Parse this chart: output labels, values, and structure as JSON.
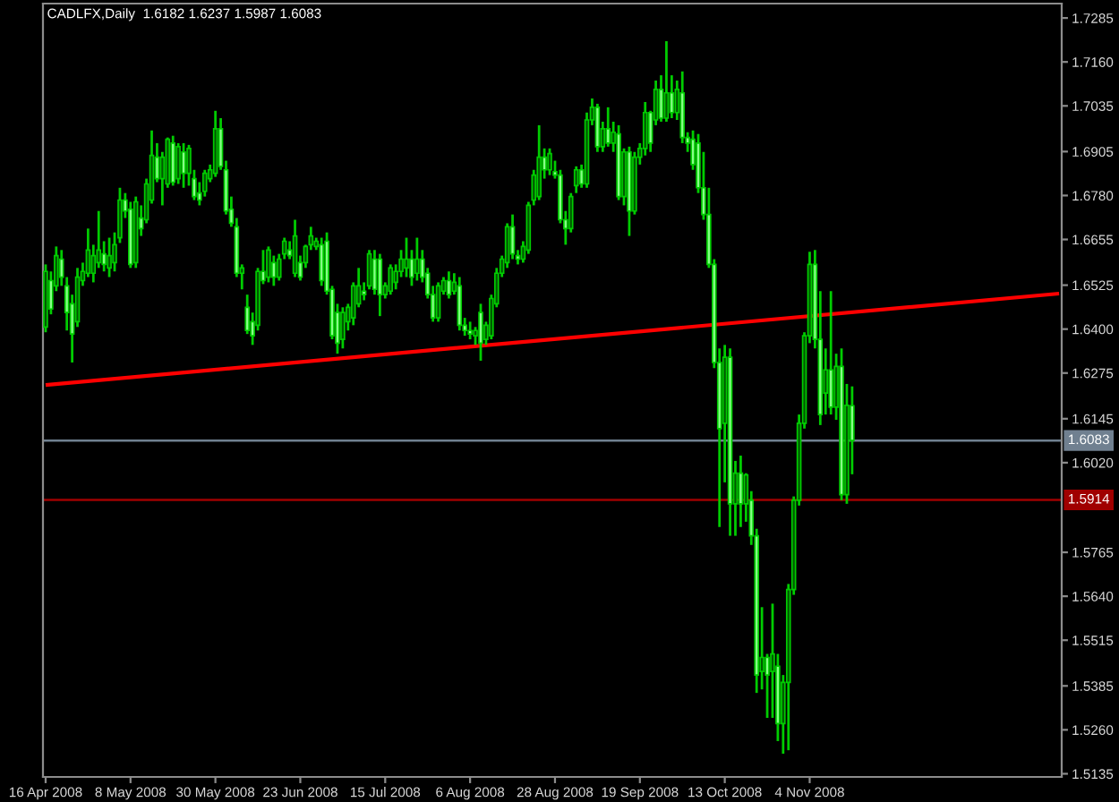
{
  "chart_data": {
    "type": "candlestick",
    "title": "CADLFX,Daily  1.6182 1.6237 1.5987 1.6083",
    "color": "#00cc00",
    "categories": [
      "16 Apr 2008",
      null,
      null,
      null,
      null,
      null,
      null,
      null,
      null,
      null,
      null,
      null,
      null,
      null,
      null,
      null,
      "8 May 2008",
      null,
      null,
      null,
      null,
      null,
      null,
      null,
      null,
      null,
      null,
      null,
      null,
      null,
      null,
      null,
      "30 May 2008",
      null,
      null,
      null,
      null,
      null,
      null,
      null,
      null,
      null,
      null,
      null,
      null,
      null,
      null,
      null,
      "23 Jun 2008",
      null,
      null,
      null,
      null,
      null,
      null,
      null,
      null,
      null,
      null,
      null,
      null,
      null,
      null,
      null,
      "15 Jul 2008",
      null,
      null,
      null,
      null,
      null,
      null,
      null,
      null,
      null,
      null,
      null,
      null,
      null,
      null,
      null,
      "6 Aug 2008",
      null,
      null,
      null,
      null,
      null,
      null,
      null,
      null,
      null,
      null,
      null,
      null,
      null,
      null,
      null,
      "28 Aug 2008",
      null,
      null,
      null,
      null,
      null,
      null,
      null,
      null,
      null,
      null,
      null,
      null,
      null,
      null,
      null,
      "19 Sep 2008",
      null,
      null,
      null,
      null,
      null,
      null,
      null,
      null,
      null,
      null,
      null,
      null,
      null,
      null,
      null,
      "13 Oct 2008",
      null,
      null,
      null,
      null,
      null,
      null,
      null,
      null,
      null,
      null,
      null,
      null,
      null,
      null,
      null,
      "4 Nov 2008",
      null,
      null,
      null,
      null,
      null,
      null,
      null,
      null,
      null,
      null,
      null,
      null,
      null,
      null,
      null,
      null,
      null,
      null,
      null,
      null,
      null,
      null,
      null,
      null,
      null,
      null,
      null,
      null,
      null,
      null,
      null,
      null,
      null,
      null,
      null,
      null,
      null,
      null,
      null,
      null,
      null,
      null,
      null,
      null,
      null,
      null,
      null
    ],
    "ohlc": [
      [
        1.6406,
        1.6584,
        1.6391,
        1.6564
      ],
      [
        1.6538,
        1.6564,
        1.6442,
        1.6457
      ],
      [
        1.6523,
        1.6635,
        1.6508,
        1.6609
      ],
      [
        1.6599,
        1.6625,
        1.6523,
        1.6548
      ],
      [
        1.6523,
        1.6548,
        1.6396,
        1.6447
      ],
      [
        1.6472,
        1.6498,
        1.6305,
        1.6386
      ],
      [
        1.6421,
        1.6574,
        1.6406,
        1.6548
      ],
      [
        1.6538,
        1.6589,
        1.6523,
        1.6564
      ],
      [
        1.6559,
        1.6686,
        1.6548,
        1.6625
      ],
      [
        1.6559,
        1.664,
        1.6533,
        1.6609
      ],
      [
        1.6589,
        1.6736,
        1.6574,
        1.6625
      ],
      [
        1.6614,
        1.665,
        1.6564,
        1.6584
      ],
      [
        1.6574,
        1.666,
        1.6548,
        1.6609
      ],
      [
        1.6589,
        1.6675,
        1.6564,
        1.664
      ],
      [
        1.666,
        1.6802,
        1.6645,
        1.6767
      ],
      [
        1.6767,
        1.6787,
        1.6716,
        1.6736
      ],
      [
        1.6741,
        1.6762,
        1.6574,
        1.6584
      ],
      [
        1.6589,
        1.6777,
        1.6574,
        1.6762
      ],
      [
        1.6716,
        1.6752,
        1.6665,
        1.6686
      ],
      [
        1.6711,
        1.6828,
        1.6701,
        1.6813
      ],
      [
        1.6767,
        1.6965,
        1.6757,
        1.6894
      ],
      [
        1.6889,
        1.6929,
        1.6818,
        1.6828
      ],
      [
        1.6828,
        1.6904,
        1.6752,
        1.6889
      ],
      [
        1.6813,
        1.6945,
        1.6802,
        1.694
      ],
      [
        1.6929,
        1.695,
        1.6808,
        1.6818
      ],
      [
        1.6828,
        1.6929,
        1.6813,
        1.6919
      ],
      [
        1.6904,
        1.6929,
        1.6802,
        1.6843
      ],
      [
        1.6843,
        1.6924,
        1.6808,
        1.6914
      ],
      [
        1.6828,
        1.6853,
        1.6767,
        1.6777
      ],
      [
        1.6787,
        1.6818,
        1.6752,
        1.6767
      ],
      [
        1.6792,
        1.6853,
        1.6777,
        1.6843
      ],
      [
        1.6828,
        1.6868,
        1.6818,
        1.6853
      ],
      [
        1.6843,
        1.7021,
        1.6833,
        1.697
      ],
      [
        1.697,
        1.7,
        1.6853,
        1.6863
      ],
      [
        1.6853,
        1.6879,
        1.6726,
        1.6736
      ],
      [
        1.6741,
        1.6777,
        1.6691,
        1.6701
      ],
      [
        1.6691,
        1.6716,
        1.6548,
        1.6559
      ],
      [
        1.6559,
        1.6584,
        1.6513,
        1.6574
      ],
      [
        1.6462,
        1.6498,
        1.6386,
        1.6396
      ],
      [
        1.6421,
        1.6447,
        1.6355,
        1.6381
      ],
      [
        1.6411,
        1.6574,
        1.6396,
        1.6564
      ],
      [
        1.6564,
        1.6625,
        1.6528,
        1.6538
      ],
      [
        1.6548,
        1.6635,
        1.6533,
        1.6625
      ],
      [
        1.6589,
        1.6609,
        1.6523,
        1.6548
      ],
      [
        1.6548,
        1.6614,
        1.6538,
        1.6599
      ],
      [
        1.6614,
        1.666,
        1.6599,
        1.665
      ],
      [
        1.6625,
        1.665,
        1.6599,
        1.6609
      ],
      [
        1.6559,
        1.6711,
        1.6548,
        1.6665
      ],
      [
        1.6589,
        1.6609,
        1.6538,
        1.6548
      ],
      [
        1.6589,
        1.664,
        1.6574,
        1.6635
      ],
      [
        1.664,
        1.6691,
        1.6625,
        1.6665
      ],
      [
        1.6635,
        1.666,
        1.6625,
        1.665
      ],
      [
        1.664,
        1.666,
        1.6523,
        1.6538
      ],
      [
        1.665,
        1.6675,
        1.6498,
        1.6508
      ],
      [
        1.6513,
        1.6523,
        1.6371,
        1.6381
      ],
      [
        1.6447,
        1.6472,
        1.633,
        1.636
      ],
      [
        1.6371,
        1.6462,
        1.6345,
        1.6447
      ],
      [
        1.6421,
        1.6472,
        1.6396,
        1.6462
      ],
      [
        1.6432,
        1.6533,
        1.6411,
        1.6523
      ],
      [
        1.6472,
        1.6574,
        1.6462,
        1.6523
      ],
      [
        1.6508,
        1.6533,
        1.6482,
        1.6498
      ],
      [
        1.6523,
        1.6625,
        1.6513,
        1.6614
      ],
      [
        1.6599,
        1.6625,
        1.6498,
        1.6513
      ],
      [
        1.6599,
        1.6614,
        1.6437,
        1.6498
      ],
      [
        1.6498,
        1.6533,
        1.6487,
        1.6523
      ],
      [
        1.6508,
        1.6584,
        1.6498,
        1.6574
      ],
      [
        1.6533,
        1.6584,
        1.6513,
        1.6564
      ],
      [
        1.6564,
        1.6625,
        1.6548,
        1.6599
      ],
      [
        1.6574,
        1.666,
        1.6548,
        1.6599
      ],
      [
        1.6599,
        1.6625,
        1.6523,
        1.6548
      ],
      [
        1.6559,
        1.666,
        1.6538,
        1.6599
      ],
      [
        1.6599,
        1.6625,
        1.6533,
        1.6548
      ],
      [
        1.6559,
        1.6574,
        1.6487,
        1.6498
      ],
      [
        1.6498,
        1.6523,
        1.6421,
        1.6432
      ],
      [
        1.6432,
        1.6533,
        1.6421,
        1.6523
      ],
      [
        1.6508,
        1.6548,
        1.6498,
        1.6538
      ],
      [
        1.6538,
        1.6564,
        1.6487,
        1.6498
      ],
      [
        1.6508,
        1.6559,
        1.6498,
        1.6533
      ],
      [
        1.6523,
        1.6548,
        1.6396,
        1.6411
      ],
      [
        1.6411,
        1.6432,
        1.6381,
        1.6396
      ],
      [
        1.6396,
        1.6421,
        1.6371,
        1.6386
      ],
      [
        1.6381,
        1.6406,
        1.6355,
        1.6396
      ],
      [
        1.6447,
        1.6472,
        1.631,
        1.636
      ],
      [
        1.6371,
        1.6421,
        1.6355,
        1.6411
      ],
      [
        1.6381,
        1.6498,
        1.6371,
        1.6487
      ],
      [
        1.6472,
        1.6574,
        1.6462,
        1.6559
      ],
      [
        1.6559,
        1.6609,
        1.6548,
        1.6599
      ],
      [
        1.6589,
        1.6701,
        1.6574,
        1.6691
      ],
      [
        1.6691,
        1.6726,
        1.6599,
        1.6614
      ],
      [
        1.6609,
        1.6625,
        1.6584,
        1.6599
      ],
      [
        1.6599,
        1.665,
        1.6589,
        1.6635
      ],
      [
        1.6625,
        1.6762,
        1.6614,
        1.6752
      ],
      [
        1.6767,
        1.6853,
        1.6752,
        1.6838
      ],
      [
        1.6777,
        1.698,
        1.6767,
        1.6889
      ],
      [
        1.6889,
        1.6914,
        1.6828,
        1.6853
      ],
      [
        1.6853,
        1.6914,
        1.6838,
        1.6899
      ],
      [
        1.6848,
        1.6879,
        1.6828,
        1.6838
      ],
      [
        1.6838,
        1.6853,
        1.6701,
        1.6711
      ],
      [
        1.6711,
        1.6736,
        1.664,
        1.6686
      ],
      [
        1.6686,
        1.6787,
        1.6675,
        1.6777
      ],
      [
        1.6808,
        1.6863,
        1.6787,
        1.6853
      ],
      [
        1.6853,
        1.6868,
        1.6802,
        1.6813
      ],
      [
        1.6813,
        1.7016,
        1.6802,
        1.6995
      ],
      [
        1.6995,
        1.7056,
        1.698,
        1.7031
      ],
      [
        1.7031,
        1.7041,
        1.6904,
        1.6919
      ],
      [
        1.6919,
        1.699,
        1.6904,
        1.697
      ],
      [
        1.697,
        1.7031,
        1.6919,
        1.6929
      ],
      [
        1.6929,
        1.699,
        1.6904,
        1.696
      ],
      [
        1.6955,
        1.698,
        1.6767,
        1.6777
      ],
      [
        1.6777,
        1.6914,
        1.6752,
        1.6904
      ],
      [
        1.6904,
        1.6919,
        1.6665,
        1.6736
      ],
      [
        1.6736,
        1.6904,
        1.6726,
        1.6889
      ],
      [
        1.6889,
        1.6929,
        1.6868,
        1.6914
      ],
      [
        1.6914,
        1.7046,
        1.6894,
        1.7016
      ],
      [
        1.7016,
        1.7021,
        1.6904,
        1.6929
      ],
      [
        1.6995,
        1.7107,
        1.698,
        1.7082
      ],
      [
        1.7082,
        1.7122,
        1.699,
        1.7
      ],
      [
        1.7,
        1.7219,
        1.699,
        1.7072
      ],
      [
        1.7072,
        1.7122,
        1.7,
        1.7016
      ],
      [
        1.7016,
        1.7107,
        1.6995,
        1.7082
      ],
      [
        1.7072,
        1.7133,
        1.6929,
        1.6945
      ],
      [
        1.6945,
        1.696,
        1.6904,
        1.6929
      ],
      [
        1.694,
        1.6965,
        1.6853,
        1.6868
      ],
      [
        1.6929,
        1.6955,
        1.6787,
        1.6802
      ],
      [
        1.6802,
        1.6904,
        1.6711,
        1.6726
      ],
      [
        1.6726,
        1.6802,
        1.6574,
        1.6584
      ],
      [
        1.6584,
        1.6599,
        1.6289,
        1.6305
      ],
      [
        1.6305,
        1.6345,
        1.5837,
        1.6117
      ],
      [
        1.6132,
        1.6355,
        1.5964,
        1.632
      ],
      [
        1.632,
        1.6345,
        1.5812,
        1.5903
      ],
      [
        1.5903,
        1.6025,
        1.5812,
        1.599
      ],
      [
        1.599,
        1.604,
        1.5837,
        1.5903
      ],
      [
        1.5903,
        1.599,
        1.5852,
        1.5985
      ],
      [
        1.5913,
        1.5939,
        1.5786,
        1.5812
      ],
      [
        1.5812,
        1.5832,
        1.5365,
        1.5416
      ],
      [
        1.5426,
        1.5609,
        1.5375,
        1.5466
      ],
      [
        1.5466,
        1.5476,
        1.5294,
        1.5416
      ],
      [
        1.5426,
        1.5619,
        1.5294,
        1.5476
      ],
      [
        1.5441,
        1.5476,
        1.5228,
        1.5278
      ],
      [
        1.5278,
        1.5416,
        1.5192,
        1.5395
      ],
      [
        1.5395,
        1.5675,
        1.5202,
        1.5659
      ],
      [
        1.5659,
        1.5924,
        1.5644,
        1.5913
      ],
      [
        1.5913,
        1.6157,
        1.5898,
        1.6132
      ],
      [
        1.6132,
        1.6391,
        1.6117,
        1.6381
      ],
      [
        1.6381,
        1.662,
        1.636,
        1.6584
      ],
      [
        1.6584,
        1.6625,
        1.6345,
        1.6371
      ],
      [
        1.6371,
        1.6508,
        1.6127,
        1.6157
      ],
      [
        1.6218,
        1.6345,
        1.6157,
        1.6284
      ],
      [
        1.6284,
        1.6508,
        1.6157,
        1.6178
      ],
      [
        1.6178,
        1.633,
        1.6142,
        1.6294
      ],
      [
        1.6294,
        1.6345,
        1.5913,
        1.5929
      ],
      [
        1.5929,
        1.6244,
        1.5903,
        1.6183
      ],
      [
        1.6182,
        1.6237,
        1.5987,
        1.6083
      ],
      null,
      null,
      null,
      null,
      null,
      null,
      null,
      null,
      null,
      null,
      null,
      null,
      null,
      null,
      null,
      null,
      null,
      null,
      null,
      null,
      null,
      null,
      null,
      null,
      null,
      null,
      null,
      null,
      null,
      null,
      null,
      null,
      null,
      null,
      null,
      null,
      null,
      null,
      null
    ],
    "colors": [
      "#005a00",
      "#88ff88",
      "#005a00",
      "#88ff88",
      "#88ff88",
      "#88ff88",
      "#005a00",
      "#005a00",
      "#005a00",
      "#005a00",
      "#005a00",
      "#88ff88",
      "#005a00",
      "#005a00",
      "#005a00",
      "#88ff88",
      "#88ff88",
      "#005a00",
      "#88ff88",
      "#005a00",
      "#005a00",
      "#88ff88",
      "#005a00",
      "#005a00",
      "#88ff88",
      "#005a00",
      "#88ff88",
      "#005a00",
      "#88ff88",
      "#88ff88",
      "#005a00",
      "#005a00",
      "#005a00",
      "#88ff88",
      "#88ff88",
      "#88ff88",
      "#88ff88",
      "#005a00",
      "#88ff88",
      "#88ff88",
      "#005a00",
      "#88ff88",
      "#005a00",
      "#88ff88",
      "#005a00",
      "#005a00",
      "#88ff88",
      "#005a00",
      "#88ff88",
      "#005a00",
      "#005a00",
      "#005a00",
      "#88ff88",
      "#88ff88",
      "#88ff88",
      "#88ff88",
      "#005a00",
      "#005a00",
      "#005a00",
      "#005a00",
      "#88ff88",
      "#005a00",
      "#88ff88",
      "#88ff88",
      "#005a00",
      "#005a00",
      "#005a00",
      "#005a00",
      "#005a00",
      "#88ff88",
      "#005a00",
      "#88ff88",
      "#88ff88",
      "#88ff88",
      "#005a00",
      "#005a00",
      "#88ff88",
      "#005a00",
      "#88ff88",
      "#88ff88",
      "#88ff88",
      "#005a00",
      "#88ff88",
      "#005a00",
      "#005a00",
      "#005a00",
      "#005a00",
      "#005a00",
      "#88ff88",
      "#88ff88",
      "#005a00",
      "#005a00",
      "#005a00",
      "#005a00",
      "#88ff88",
      "#005a00",
      "#88ff88",
      "#88ff88",
      "#88ff88",
      "#005a00",
      "#005a00",
      "#88ff88",
      "#005a00",
      "#005a00",
      "#88ff88",
      "#005a00",
      "#88ff88",
      "#005a00",
      "#88ff88",
      "#005a00",
      "#88ff88",
      "#005a00",
      "#005a00",
      "#005a00",
      "#88ff88",
      "#005a00",
      "#88ff88",
      "#005a00",
      "#88ff88",
      "#005a00",
      "#88ff88",
      "#88ff88",
      "#88ff88",
      "#88ff88",
      "#88ff88",
      "#88ff88",
      "#88ff88",
      "#88ff88",
      "#005a00",
      "#88ff88",
      "#005a00",
      "#88ff88",
      "#005a00",
      "#88ff88",
      "#88ff88",
      "#005a00",
      "#88ff88",
      "#005a00",
      "#88ff88",
      "#005a00",
      "#005a00",
      "#005a00",
      "#005a00",
      "#005a00",
      "#005a00",
      "#88ff88",
      "#88ff88",
      "#005a00",
      "#88ff88",
      "#005a00",
      "#88ff88",
      "#005a00",
      "#88ff88",
      null,
      null,
      null,
      null,
      null,
      null,
      null,
      null,
      null,
      null,
      null,
      null,
      null,
      null,
      null,
      null,
      null,
      null,
      null,
      null,
      null,
      null,
      null,
      null,
      null,
      null,
      null,
      null,
      null,
      null,
      null,
      null,
      null,
      null,
      null,
      null,
      null,
      null,
      null
    ],
    "series": [
      {
        "type": "line",
        "color": "#ff0000",
        "values": [
          1.6241,
          null,
          null,
          null,
          null,
          null,
          null,
          null,
          null,
          null,
          null,
          null,
          null,
          null,
          null,
          null,
          null,
          null,
          null,
          null,
          null,
          null,
          null,
          null,
          null,
          null,
          null,
          null,
          null,
          null,
          null,
          null,
          null,
          null,
          null,
          null,
          null,
          null,
          null,
          null,
          null,
          null,
          null,
          null,
          null,
          null,
          null,
          null,
          null,
          null,
          null,
          null,
          null,
          null,
          null,
          null,
          null,
          null,
          null,
          null,
          null,
          null,
          null,
          null,
          null,
          null,
          null,
          null,
          null,
          null,
          null,
          null,
          null,
          null,
          null,
          null,
          null,
          null,
          null,
          null,
          null,
          null,
          null,
          null,
          null,
          null,
          null,
          null,
          null,
          null,
          null,
          null,
          null,
          null,
          null,
          null,
          null,
          null,
          null,
          null,
          null,
          null,
          null,
          null,
          null,
          null,
          null,
          null,
          null,
          null,
          null,
          null,
          null,
          null,
          null,
          null,
          null,
          null,
          null,
          null,
          null,
          null,
          null,
          null,
          null,
          null,
          null,
          null,
          null,
          null,
          null,
          null,
          null,
          null,
          null,
          null,
          null,
          null,
          null,
          null,
          null,
          null,
          null,
          null,
          null,
          null,
          null,
          null,
          null,
          null,
          null,
          null,
          null,
          null,
          null,
          null,
          null,
          null,
          null,
          null,
          null,
          null,
          null,
          null,
          null,
          null,
          null,
          null,
          null,
          null,
          null,
          null,
          null,
          null,
          null,
          null,
          null,
          null,
          null,
          null,
          null,
          null,
          null,
          null,
          null,
          null,
          null,
          null,
          null,
          null,
          null,
          1.6501
        ]
      }
    ],
    "ref_lines": [
      {
        "axis": "y",
        "value": 1.6083,
        "label": "1.6083",
        "color": "#708090"
      },
      {
        "axis": "y",
        "value": 1.5914,
        "label": "1.5914",
        "color": "#a00000"
      }
    ],
    "ylim": [
      1.5126,
      1.7326
    ],
    "yticks": [
      1.7285,
      {
        "value": 1.716,
        "label": "1.7160"
      },
      1.7035,
      1.6905,
      {
        "value": 1.678,
        "label": "1.6780"
      },
      1.6655,
      1.6525,
      {
        "value": 1.64,
        "label": "1.6400"
      },
      1.6275,
      1.6145,
      {
        "value": 1.602,
        "label": "1.6020"
      },
      1.5765,
      {
        "value": 1.564,
        "label": "1.5640"
      },
      1.5515,
      1.5385,
      {
        "value": 1.526,
        "label": "1.5260"
      },
      1.5135
    ]
  }
}
